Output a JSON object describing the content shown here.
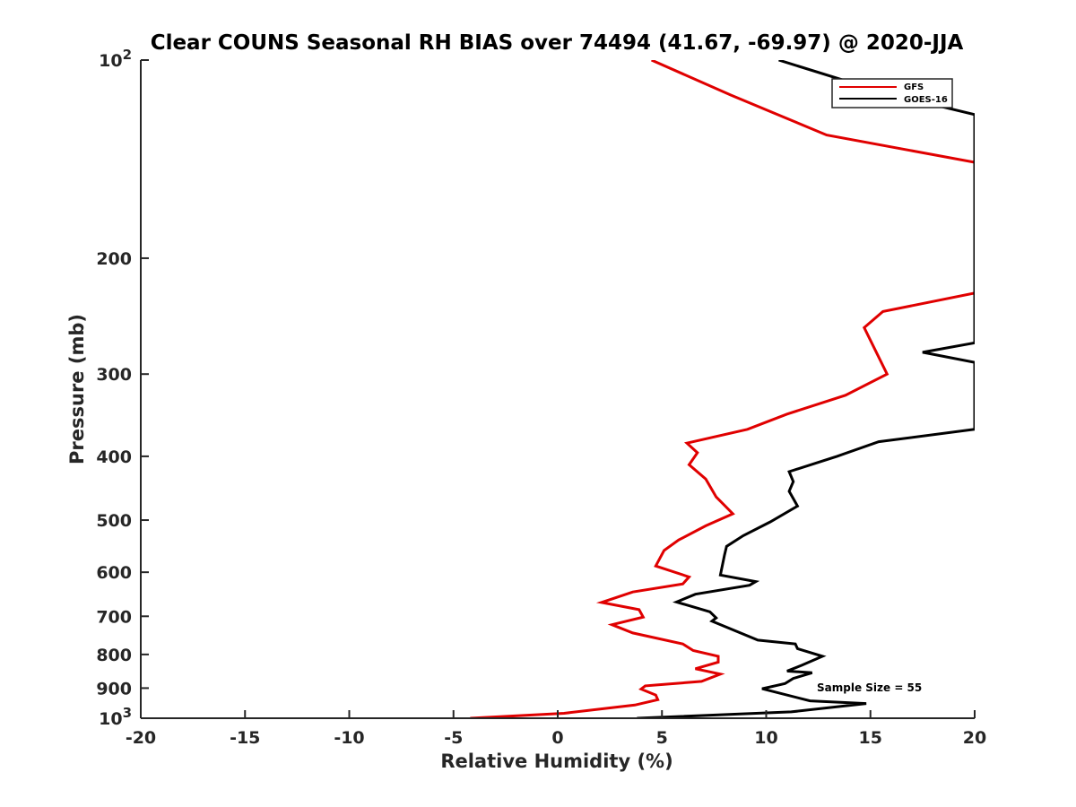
{
  "chart_data": {
    "type": "line",
    "title": "Clear COUNS Seasonal RH BIAS over 74494 (41.67, -69.97) @ 2020-JJA",
    "xlabel": "Relative Humidity (%)",
    "ylabel": "Pressure (mb)",
    "xlim": [
      -20,
      20
    ],
    "ylim": [
      100,
      1000
    ],
    "y_scale": "log",
    "y_reversed": true,
    "grid": false,
    "legend_position": "top-right",
    "x_ticks": [
      "-20",
      "-15",
      "-10",
      "-5",
      "0",
      "5",
      "10",
      "15",
      "20"
    ],
    "y_ticks": [
      {
        "value": 100,
        "label": "10",
        "sup": "2"
      },
      {
        "value": 200,
        "label": "200",
        "sup": ""
      },
      {
        "value": 300,
        "label": "300",
        "sup": ""
      },
      {
        "value": 400,
        "label": "400",
        "sup": ""
      },
      {
        "value": 500,
        "label": "500",
        "sup": ""
      },
      {
        "value": 600,
        "label": "600",
        "sup": ""
      },
      {
        "value": 700,
        "label": "700",
        "sup": ""
      },
      {
        "value": 800,
        "label": "800",
        "sup": ""
      },
      {
        "value": 900,
        "label": "900",
        "sup": ""
      },
      {
        "value": 1000,
        "label": "10",
        "sup": "3"
      }
    ],
    "annotation": "Sample Size = 55",
    "series": [
      {
        "name": "GFS",
        "color": "#e00000",
        "points": [
          [
            4.5,
            100
          ],
          [
            8.3,
            113
          ],
          [
            12.9,
            130
          ],
          [
            20,
            143
          ],
          [
            20,
            226
          ],
          [
            15.6,
            241
          ],
          [
            14.7,
            255
          ],
          [
            15.8,
            300
          ],
          [
            13.8,
            323
          ],
          [
            11.0,
            345
          ],
          [
            9.1,
            364
          ],
          [
            6.2,
            382
          ],
          [
            6.7,
            395
          ],
          [
            6.3,
            412
          ],
          [
            7.1,
            433
          ],
          [
            7.6,
            461
          ],
          [
            8.4,
            489
          ],
          [
            7.1,
            510
          ],
          [
            5.8,
            536
          ],
          [
            5.1,
            556
          ],
          [
            4.7,
            587
          ],
          [
            6.3,
            610
          ],
          [
            6.0,
            625
          ],
          [
            3.6,
            643
          ],
          [
            2.1,
            667
          ],
          [
            3.9,
            684
          ],
          [
            4.1,
            702
          ],
          [
            2.6,
            721
          ],
          [
            3.6,
            742
          ],
          [
            6.0,
            771
          ],
          [
            6.5,
            789
          ],
          [
            7.7,
            805
          ],
          [
            7.7,
            822
          ],
          [
            6.6,
            841
          ],
          [
            7.8,
            857
          ],
          [
            6.9,
            879
          ],
          [
            4.2,
            893
          ],
          [
            4.0,
            903
          ],
          [
            4.7,
            922
          ],
          [
            4.8,
            937
          ],
          [
            3.7,
            955
          ],
          [
            0.3,
            983
          ],
          [
            -4.2,
            1000
          ]
        ]
      },
      {
        "name": "GOES-16",
        "color": "#000000",
        "points": [
          [
            10.6,
            100
          ],
          [
            15.6,
            112
          ],
          [
            20,
            121
          ],
          [
            20,
            269
          ],
          [
            17.5,
            278
          ],
          [
            20,
            288
          ],
          [
            20,
            364
          ],
          [
            15.4,
            380
          ],
          [
            13.4,
            400
          ],
          [
            11.1,
            422
          ],
          [
            11.3,
            437
          ],
          [
            11.1,
            452
          ],
          [
            11.5,
            476
          ],
          [
            10.2,
            503
          ],
          [
            8.9,
            528
          ],
          [
            8.1,
            548
          ],
          [
            8.0,
            565
          ],
          [
            7.8,
            606
          ],
          [
            9.5,
            620
          ],
          [
            9.2,
            628
          ],
          [
            6.6,
            648
          ],
          [
            5.7,
            666
          ],
          [
            7.3,
            689
          ],
          [
            7.6,
            704
          ],
          [
            7.4,
            712
          ],
          [
            9.6,
            761
          ],
          [
            11.4,
            771
          ],
          [
            11.5,
            784
          ],
          [
            12.7,
            805
          ],
          [
            11.7,
            831
          ],
          [
            11.0,
            848
          ],
          [
            12.2,
            853
          ],
          [
            11.3,
            870
          ],
          [
            10.9,
            886
          ],
          [
            9.8,
            902
          ],
          [
            12.1,
            941
          ],
          [
            14.8,
            950
          ],
          [
            11.2,
            978
          ],
          [
            3.8,
            1000
          ]
        ]
      }
    ]
  }
}
